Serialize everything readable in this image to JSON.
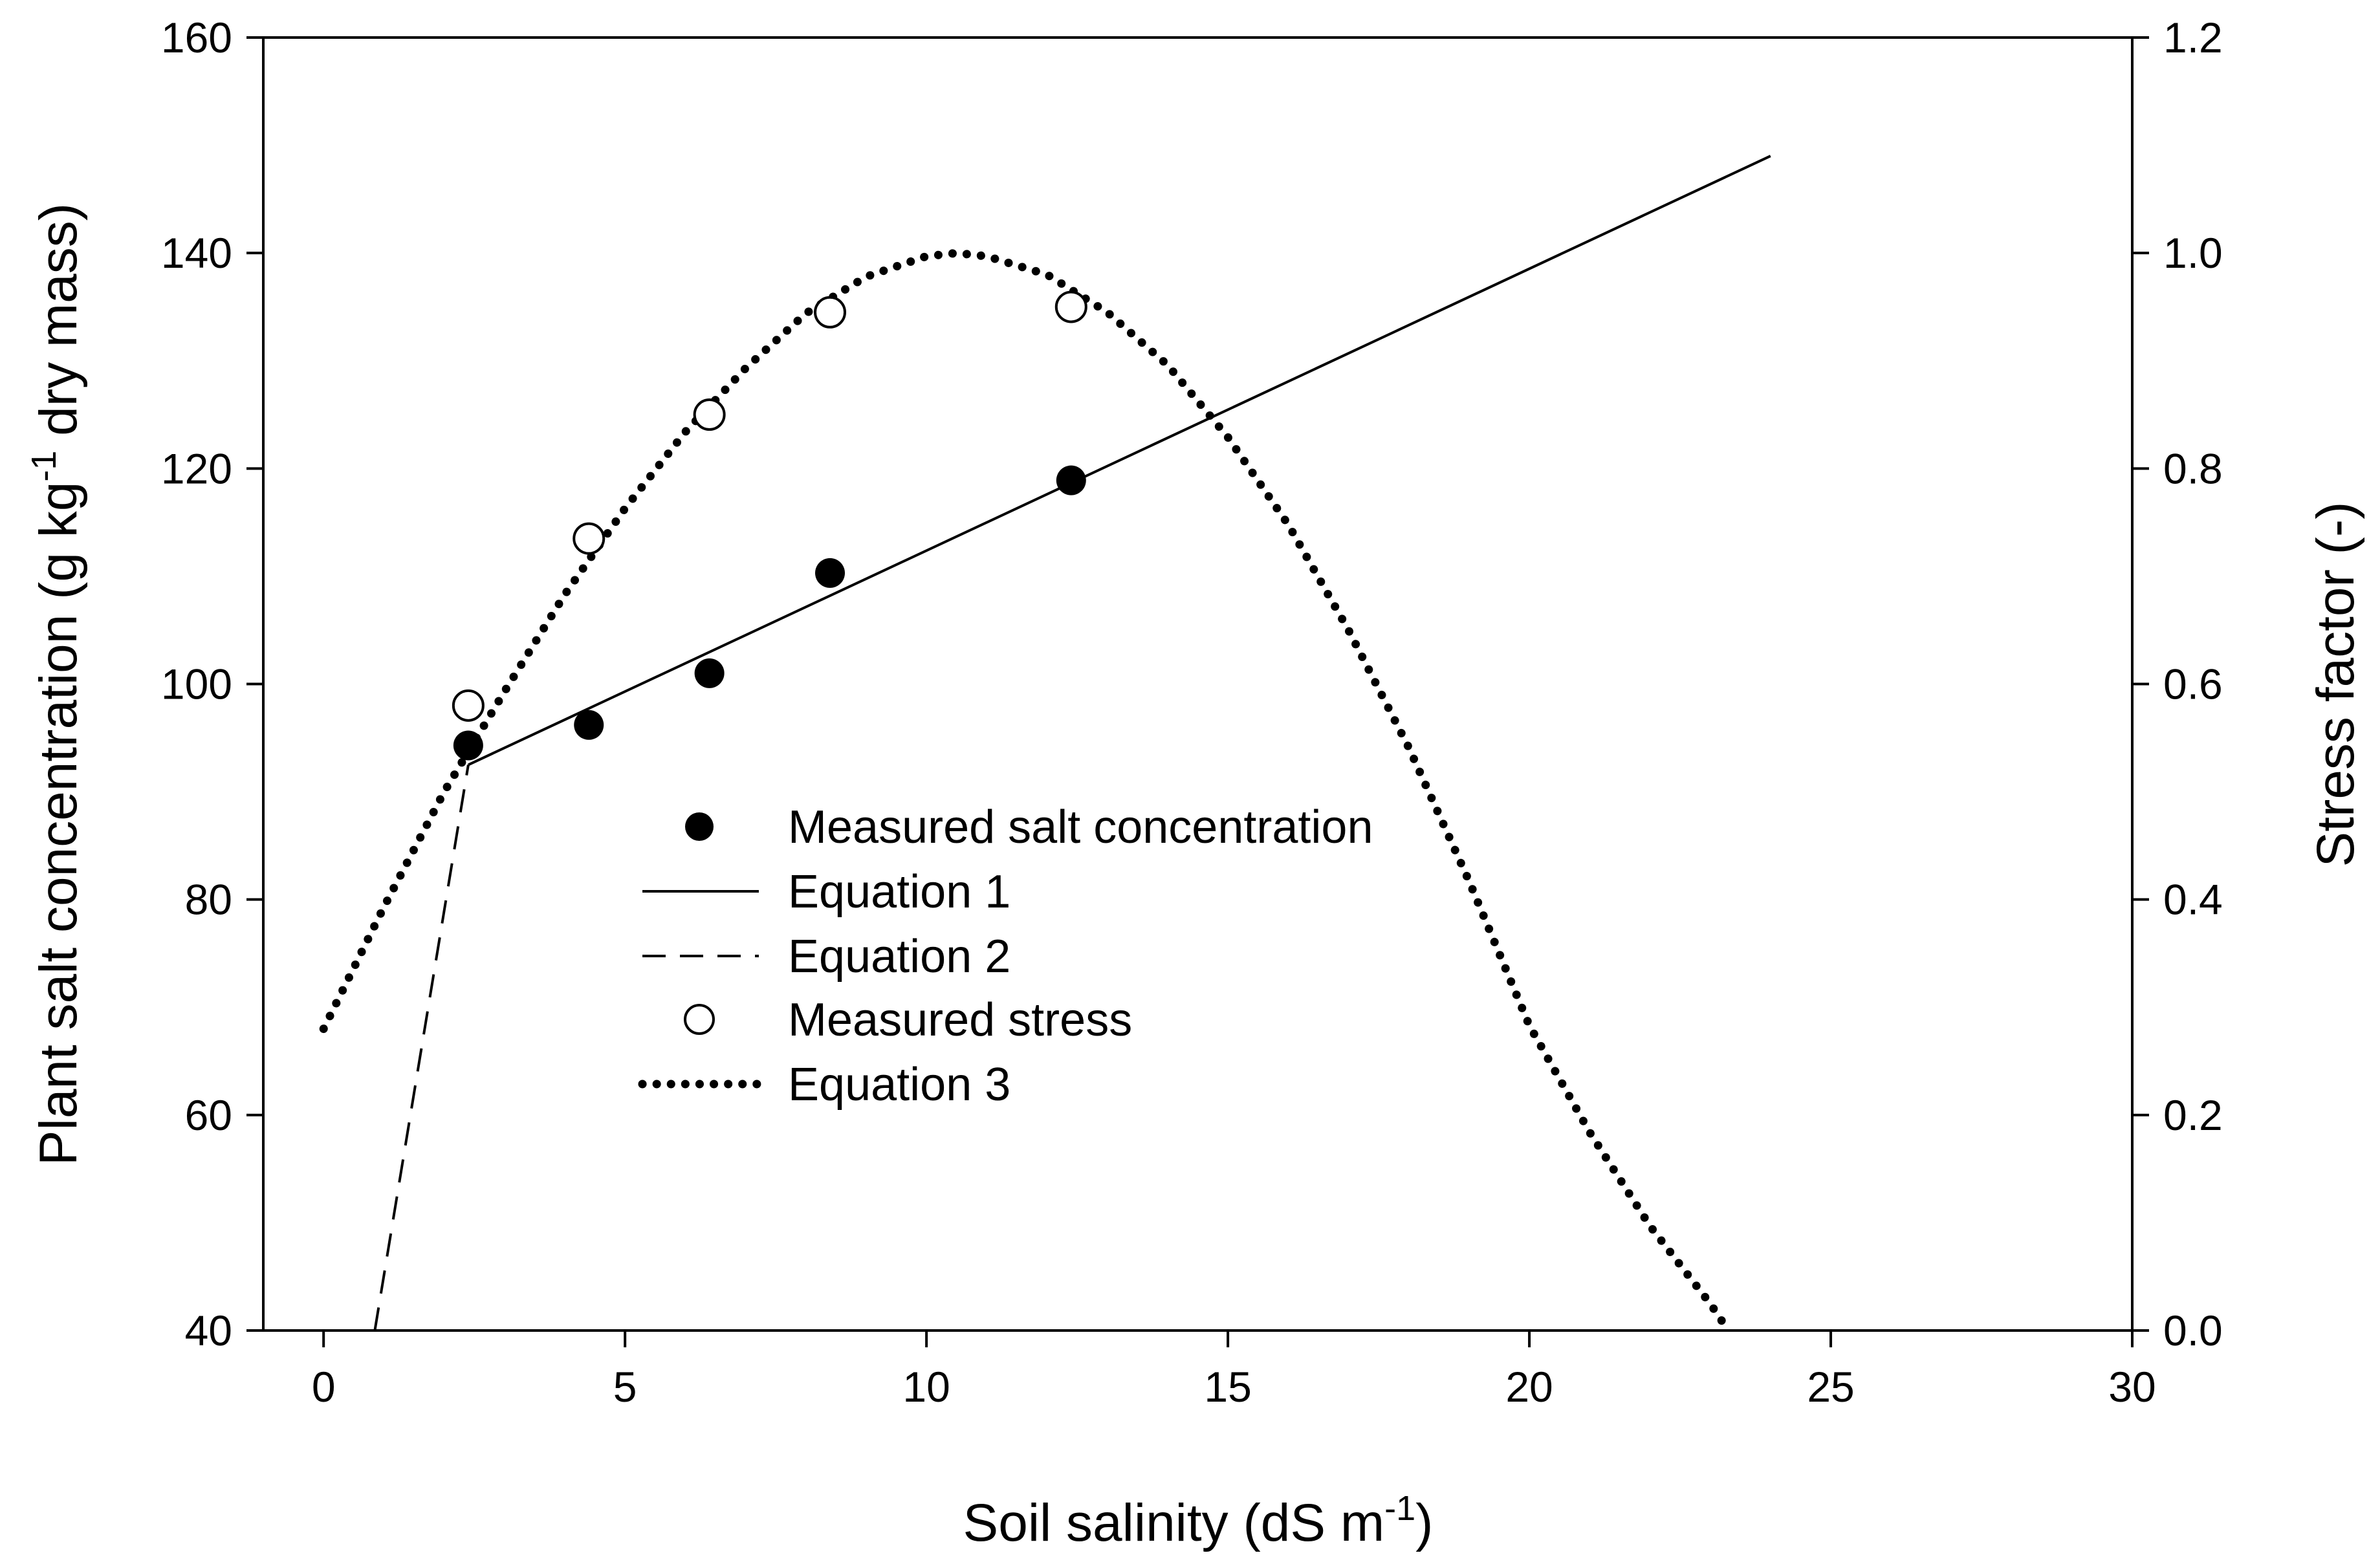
{
  "chart_data": {
    "type": "scatter",
    "title": "",
    "xlabel": "Soil salinity (dS m",
    "xlabel_sup": "-1",
    "xlabel_end": ")",
    "ylabel_left": "Plant salt concentration (g kg",
    "ylabel_left_sup": "-1",
    "ylabel_left_end": " dry mass)",
    "ylabel_right": "Stress factor (-)",
    "xlim": [
      -1,
      30
    ],
    "ylim_left": [
      40,
      160
    ],
    "ylim_right": [
      0.0,
      1.2
    ],
    "x_ticks": [
      0,
      5,
      10,
      15,
      20,
      25,
      30
    ],
    "x_tick_labels": [
      "0",
      "5",
      "10",
      "15",
      "20",
      "25",
      "30"
    ],
    "y_left_ticks": [
      40,
      60,
      80,
      100,
      120,
      140,
      160
    ],
    "y_left_tick_labels": [
      "40",
      "60",
      "80",
      "100",
      "120",
      "140",
      "160"
    ],
    "y_right_ticks": [
      0.0,
      0.2,
      0.4,
      0.6,
      0.8,
      1.0,
      1.2
    ],
    "y_right_tick_labels": [
      "0.0",
      "0.2",
      "0.4",
      "0.6",
      "0.8",
      "1.0",
      "1.2"
    ],
    "legend_position": "center",
    "series": [
      {
        "name": "Measured salt concentration",
        "axis": "left",
        "style": "filled-circle",
        "x": [
          2.4,
          4.4,
          6.4,
          8.4,
          12.4
        ],
        "y": [
          94.3,
          96.2,
          101,
          110.3,
          118.9
        ]
      },
      {
        "name": "Equation 1",
        "axis": "left",
        "style": "solid-line",
        "x": [
          2.4,
          24
        ],
        "y": [
          92.5,
          149
        ]
      },
      {
        "name": "Equation 2",
        "axis": "left",
        "style": "dashed-line",
        "x": [
          0.85,
          2.4
        ],
        "y": [
          40,
          92.5
        ]
      },
      {
        "name": "Measured stress",
        "axis": "right",
        "style": "open-circle",
        "x": [
          2.4,
          4.4,
          6.4,
          8.4,
          12.4
        ],
        "y": [
          0.58,
          0.735,
          0.85,
          0.945,
          0.95
        ]
      },
      {
        "name": "Equation 3",
        "axis": "right",
        "style": "dotted-line",
        "x": [
          0,
          1,
          2,
          3,
          4,
          5,
          6,
          7,
          8,
          9,
          10,
          10.5,
          11,
          12,
          13,
          14,
          15,
          16,
          17,
          18,
          19,
          20,
          21,
          22,
          23,
          23.3
        ],
        "y": [
          0.28,
          0.393,
          0.5,
          0.593,
          0.683,
          0.763,
          0.834,
          0.893,
          0.944,
          0.978,
          0.997,
          1.0,
          0.997,
          0.98,
          0.945,
          0.896,
          0.829,
          0.748,
          0.65,
          0.541,
          0.417,
          0.283,
          0.184,
          0.097,
          0.025,
          0.0
        ]
      }
    ]
  }
}
